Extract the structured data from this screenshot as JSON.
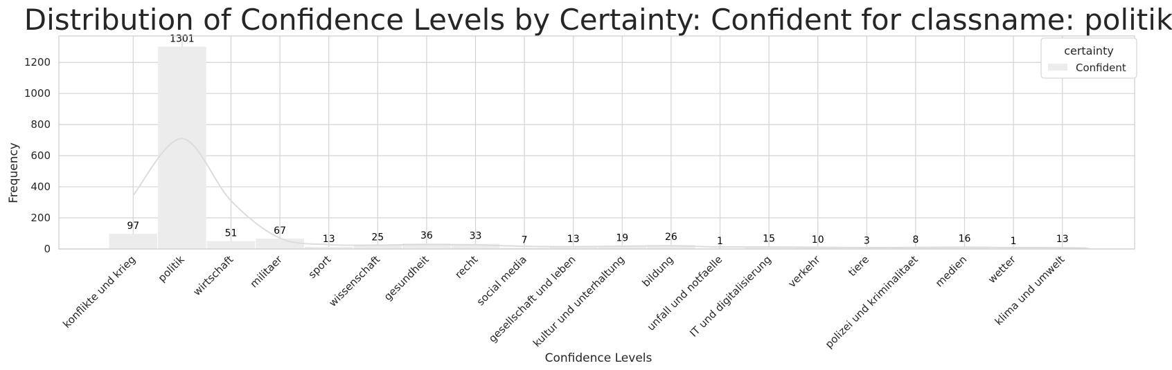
{
  "chart_data": {
    "type": "bar",
    "title": "Distribution of Confidence Levels by Certainty: Confident for classname: politik",
    "xlabel": "Confidence Levels",
    "ylabel": "Frequency",
    "ylim": [
      0,
      1370
    ],
    "yticks": [
      0,
      200,
      400,
      600,
      800,
      1000,
      1200
    ],
    "grid": true,
    "categories": [
      "konflikte und krieg",
      "politik",
      "wirtschaft",
      "militaer",
      "sport",
      "wissenschaft",
      "gesundheit",
      "recht",
      "social media",
      "gesellschaft und leben",
      "kultur und unterhaltung",
      "bildung",
      "unfall und notfaelle",
      "IT und digitalisierung",
      "verkehr",
      "tiere",
      "polizei und kriminalitaet",
      "medien",
      "wetter",
      "klima und umwelt"
    ],
    "series": [
      {
        "name": "Confident",
        "values": [
          97,
          1301,
          51,
          67,
          13,
          25,
          36,
          33,
          7,
          13,
          19,
          26,
          1,
          15,
          10,
          3,
          8,
          16,
          1,
          13
        ]
      }
    ],
    "kde": [
      345,
      710,
      310,
      70,
      28,
      25,
      28,
      26,
      17,
      15,
      18,
      20,
      13,
      13,
      11,
      9,
      10,
      11,
      9,
      8
    ],
    "legend": {
      "title": "certainty",
      "placement": "top-right"
    },
    "colors": {
      "bar": "#ececec",
      "kde": "#dcdcdc",
      "grid": "#d3d3d3",
      "frame": "#cccccc"
    }
  }
}
